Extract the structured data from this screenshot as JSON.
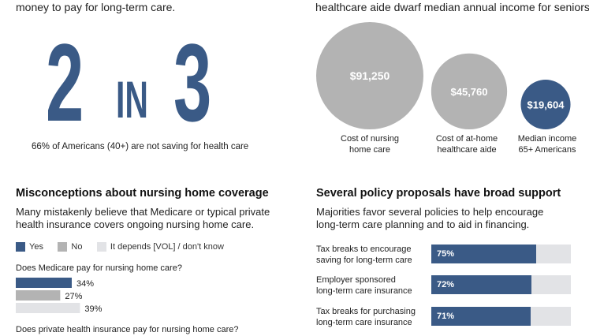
{
  "left_top": {
    "lead_text": "money to pay for long-term care.",
    "big_first": "2",
    "big_mid": "IN",
    "big_last": "3",
    "caption": "66% of Americans (40+) are not saving for health care"
  },
  "right_top": {
    "lead_text": "healthcare aide dwarf median annual income for seniors."
  },
  "colors": {
    "accent_blue": "#3a5a86",
    "bubble_gray": "#b3b3b3",
    "no_gray": "#b3b3b3",
    "depends_gray": "#e2e3e6",
    "bar_bg": "#e2e3e6"
  },
  "misconceptions": {
    "title": "Misconceptions about nursing home coverage",
    "subtitle_line1": "Many mistakenly believe that Medicare or typical private",
    "subtitle_line2": "health insurance covers ongoing nursing home care.",
    "legend": [
      {
        "label": "Yes",
        "color": "#3a5a86"
      },
      {
        "label": "No",
        "color": "#b3b3b3"
      },
      {
        "label": "It depends [VOL] / don't know",
        "color": "#e2e3e6"
      }
    ],
    "question1": "Does Medicare pay for nursing home care?",
    "question2": "Does private health insurance pay for nursing home care?"
  },
  "policy": {
    "title": "Several policy proposals have broad support",
    "subtitle_line1": "Majorities favor several policies to help encourage",
    "subtitle_line2": "long-term care planning and to aid in financing."
  },
  "chart_data": [
    {
      "type": "bubble",
      "title": "",
      "items": [
        {
          "label": "Cost of nursing home care",
          "label_line1": "Cost of nursing",
          "label_line2": "home care",
          "value": 91250,
          "display": "$91,250",
          "color": "#b3b3b3"
        },
        {
          "label": "Cost of at-home healthcare aide",
          "label_line1": "Cost of at-home",
          "label_line2": "healthcare aide",
          "value": 45760,
          "display": "$45,760",
          "color": "#b3b3b3"
        },
        {
          "label": "Median income 65+ Americans",
          "label_line1": "Median income",
          "label_line2": "65+ Americans",
          "value": 19604,
          "display": "$19,604",
          "color": "#3a5a86"
        }
      ]
    },
    {
      "type": "bar",
      "orientation": "horizontal",
      "title": "Does Medicare pay for nursing home care?",
      "categories": [
        "Yes",
        "No",
        "It depends [VOL] / don't know"
      ],
      "values": [
        34,
        27,
        39
      ],
      "labels": [
        "34%",
        "27%",
        "39%"
      ],
      "xlim": [
        0,
        100
      ]
    },
    {
      "type": "bar",
      "orientation": "horizontal",
      "stacked_background": true,
      "categories": [
        "Tax breaks to encourage saving for long-term care",
        "Employer sponsored long-term care insurance",
        "Tax breaks for purchasing long-term care insurance"
      ],
      "label_lines": [
        [
          "Tax breaks to encourage",
          "saving for long-term care"
        ],
        [
          "Employer sponsored",
          "long-term care insurance"
        ],
        [
          "Tax breaks for purchasing",
          "long-term care insurance"
        ]
      ],
      "values": [
        75,
        72,
        71
      ],
      "labels": [
        "75%",
        "72%",
        "71%"
      ],
      "xlim": [
        0,
        100
      ]
    }
  ]
}
